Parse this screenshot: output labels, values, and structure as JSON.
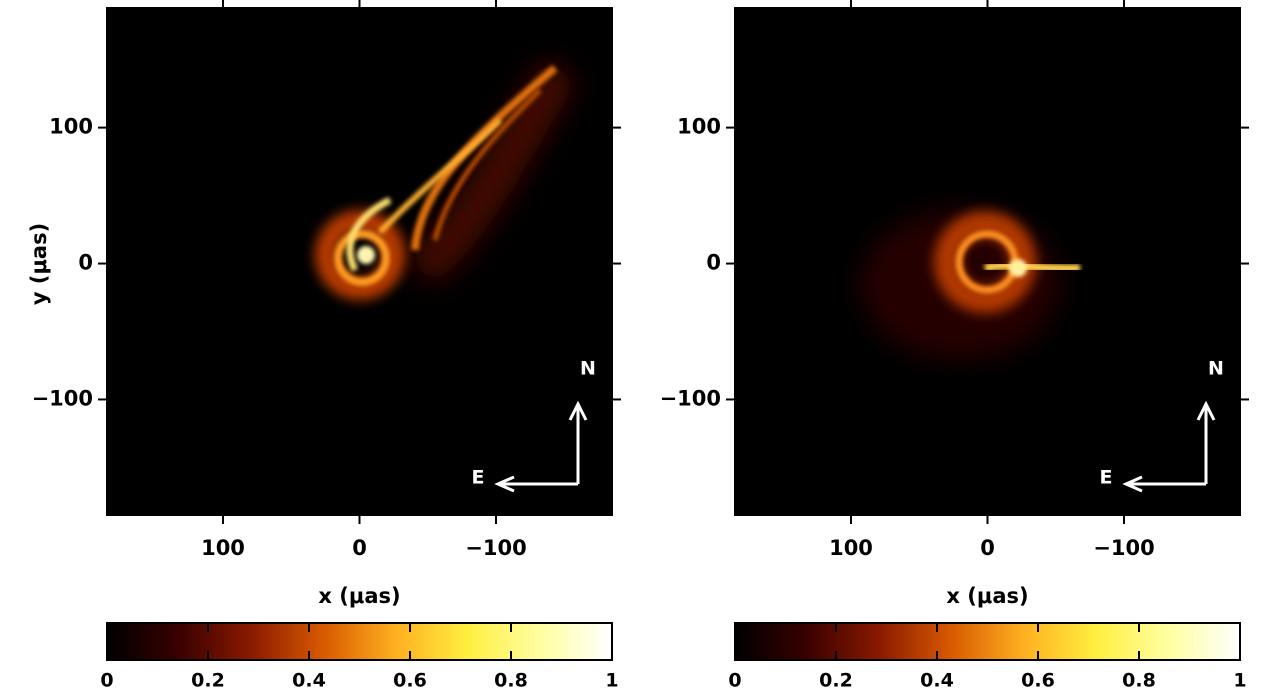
{
  "chart_data": [
    {
      "type": "image",
      "xlabel": "x (μas)",
      "ylabel": "y (μas)",
      "xlim": [
        185,
        -185
      ],
      "ylim": [
        -185,
        188
      ],
      "xticks": [
        100,
        0,
        {
          "value": -100,
          "label": "−100"
        }
      ],
      "yticks": [
        {
          "value": -100,
          "label": "−100"
        },
        0,
        100
      ],
      "compass": {
        "north": "N",
        "east": "E"
      },
      "colorbar": {
        "lim": [
          0,
          1
        ],
        "ticks": [
          0,
          0.2,
          0.4,
          0.6,
          0.8,
          1
        ],
        "colors": [
          "#000000",
          "#3a0000",
          "#8a1a00",
          "#d85a00",
          "#ffb020",
          "#ffee40",
          "#ffffa0",
          "#ffffff"
        ]
      }
    },
    {
      "type": "image",
      "xlabel": "x (μas)",
      "xlim": [
        185,
        -185
      ],
      "ylim": [
        -185,
        188
      ],
      "xticks": [
        100,
        0,
        {
          "value": -100,
          "label": "−100"
        }
      ],
      "yticks": [
        {
          "value": -100,
          "label": "−100"
        },
        0,
        100
      ],
      "compass": {
        "north": "N",
        "east": "E"
      },
      "colorbar": {
        "lim": [
          0,
          1
        ],
        "ticks": [
          0,
          0.2,
          0.4,
          0.6,
          0.8,
          1
        ],
        "colors": [
          "#000000",
          "#3a0000",
          "#8a1a00",
          "#d85a00",
          "#ffb020",
          "#ffee40",
          "#ffffa0",
          "#ffffff"
        ]
      }
    }
  ]
}
